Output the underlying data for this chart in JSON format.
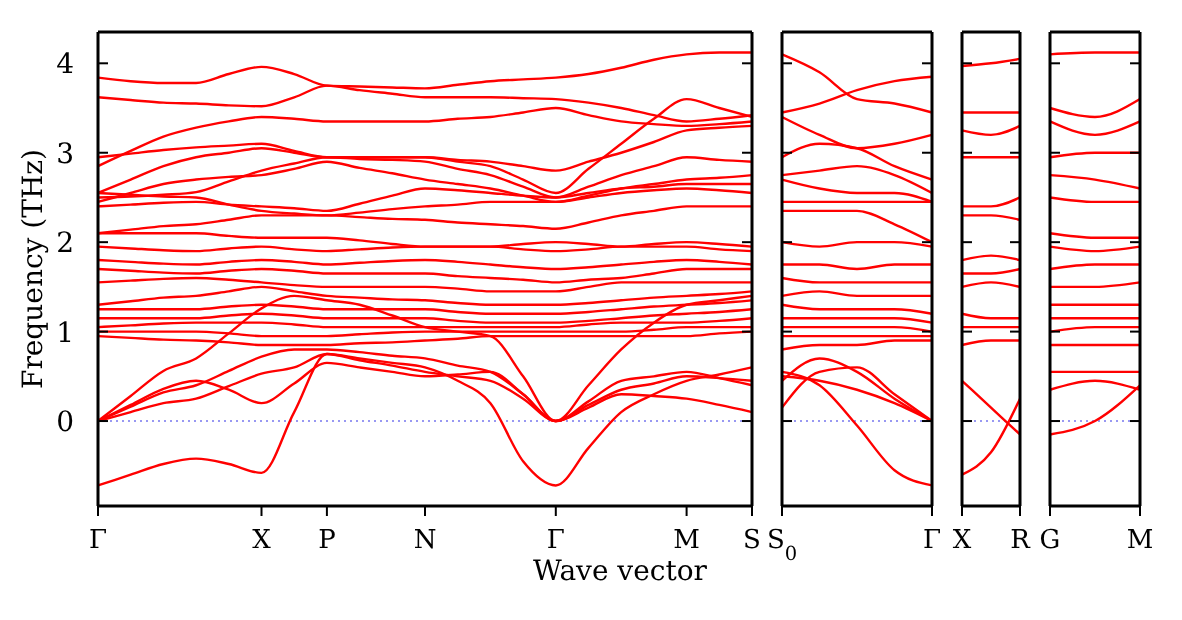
{
  "chart_data": [
    {
      "type": "line",
      "ylabel": "Frequency (THz)",
      "xlabel": "Wave vector",
      "color": "#ff0000",
      "categories": [
        "Γ",
        null,
        null,
        null,
        null,
        "X",
        null,
        "P",
        null,
        null,
        "N",
        null,
        null,
        null,
        "Γ",
        null,
        null,
        null,
        "M",
        null,
        "S"
      ],
      "ylim": [
        -0.95,
        4.35
      ],
      "yticks": [
        0,
        1,
        2,
        3,
        4
      ],
      "ref_lines": [
        {
          "axis": "y",
          "value": 0,
          "color": "#7777ee",
          "line_style": "dotted"
        }
      ],
      "series": [
        {
          "values": [
            3.84,
            3.8,
            3.78,
            3.78,
            3.88,
            3.96,
            3.88,
            3.75,
            3.74,
            3.73,
            3.72,
            3.76,
            3.8,
            3.82,
            3.84,
            3.88,
            3.95,
            4.04,
            4.1,
            4.12,
            4.12
          ]
        },
        {
          "values": [
            3.62,
            3.59,
            3.56,
            3.55,
            3.53,
            3.52,
            3.62,
            3.75,
            3.7,
            3.66,
            3.62,
            3.62,
            3.62,
            3.61,
            3.6,
            3.56,
            3.5,
            3.42,
            3.35,
            3.38,
            3.42
          ]
        },
        {
          "values": [
            2.85,
            3.02,
            3.18,
            3.28,
            3.35,
            3.4,
            3.38,
            3.35,
            3.35,
            3.35,
            3.35,
            3.38,
            3.4,
            3.45,
            3.5,
            3.42,
            3.35,
            3.32,
            3.3,
            3.32,
            3.35
          ]
        },
        {
          "values": [
            2.95,
            2.99,
            3.03,
            3.06,
            3.08,
            3.1,
            3.02,
            2.95,
            2.95,
            2.95,
            2.95,
            2.92,
            2.9,
            2.85,
            2.8,
            2.9,
            3.0,
            3.12,
            3.25,
            3.28,
            3.3
          ]
        },
        {
          "values": [
            2.55,
            2.7,
            2.85,
            2.95,
            3.0,
            3.05,
            3.0,
            2.95,
            2.95,
            2.95,
            2.95,
            2.9,
            2.85,
            2.7,
            2.55,
            2.82,
            3.1,
            3.38,
            3.6,
            3.5,
            3.4
          ]
        },
        {
          "values": [
            2.5,
            2.51,
            2.53,
            2.56,
            2.68,
            2.8,
            2.88,
            2.95,
            2.93,
            2.92,
            2.9,
            2.82,
            2.75,
            2.62,
            2.5,
            2.62,
            2.75,
            2.85,
            2.95,
            2.92,
            2.9
          ]
        },
        {
          "values": [
            2.45,
            2.55,
            2.65,
            2.7,
            2.73,
            2.75,
            2.82,
            2.9,
            2.83,
            2.77,
            2.7,
            2.65,
            2.6,
            2.52,
            2.45,
            2.52,
            2.6,
            2.65,
            2.7,
            2.72,
            2.75
          ]
        },
        {
          "values": [
            2.4,
            2.42,
            2.44,
            2.45,
            2.42,
            2.4,
            2.38,
            2.35,
            2.43,
            2.52,
            2.6,
            2.58,
            2.55,
            2.52,
            2.5,
            2.55,
            2.6,
            2.62,
            2.65,
            2.65,
            2.65
          ]
        },
        {
          "values": [
            2.55,
            2.53,
            2.51,
            2.5,
            2.42,
            2.35,
            2.32,
            2.3,
            2.33,
            2.37,
            2.4,
            2.42,
            2.45,
            2.45,
            2.45,
            2.5,
            2.55,
            2.58,
            2.6,
            2.58,
            2.55
          ]
        },
        {
          "values": [
            2.1,
            2.14,
            2.18,
            2.2,
            2.25,
            2.3,
            2.3,
            2.3,
            2.28,
            2.26,
            2.25,
            2.22,
            2.2,
            2.18,
            2.15,
            2.22,
            2.3,
            2.35,
            2.4,
            2.4,
            2.4
          ]
        },
        {
          "values": [
            2.1,
            2.1,
            2.1,
            2.1,
            2.07,
            2.05,
            2.05,
            2.05,
            2.02,
            1.98,
            1.95,
            1.95,
            1.95,
            1.98,
            2.0,
            1.98,
            1.95,
            1.98,
            2.0,
            1.98,
            1.95
          ]
        },
        {
          "values": [
            1.95,
            1.93,
            1.91,
            1.9,
            1.93,
            1.95,
            1.92,
            1.9,
            1.92,
            1.94,
            1.95,
            1.95,
            1.95,
            1.92,
            1.9,
            1.92,
            1.95,
            1.95,
            1.95,
            1.92,
            1.9
          ]
        },
        {
          "values": [
            1.8,
            1.78,
            1.76,
            1.75,
            1.78,
            1.8,
            1.78,
            1.75,
            1.77,
            1.79,
            1.8,
            1.78,
            1.75,
            1.72,
            1.7,
            1.72,
            1.75,
            1.78,
            1.8,
            1.78,
            1.75
          ]
        },
        {
          "values": [
            1.7,
            1.68,
            1.66,
            1.65,
            1.68,
            1.7,
            1.68,
            1.65,
            1.65,
            1.65,
            1.65,
            1.62,
            1.6,
            1.58,
            1.55,
            1.58,
            1.6,
            1.65,
            1.7,
            1.7,
            1.7
          ]
        },
        {
          "values": [
            1.55,
            1.57,
            1.59,
            1.6,
            1.58,
            1.55,
            1.52,
            1.5,
            1.5,
            1.5,
            1.5,
            1.48,
            1.45,
            1.45,
            1.45,
            1.5,
            1.55,
            1.55,
            1.55,
            1.55,
            1.55
          ]
        },
        {
          "values": [
            1.3,
            1.34,
            1.38,
            1.4,
            1.45,
            1.5,
            1.45,
            1.4,
            1.38,
            1.36,
            1.35,
            1.32,
            1.3,
            1.3,
            1.3,
            1.32,
            1.35,
            1.38,
            1.4,
            1.42,
            1.45
          ]
        },
        {
          "values": [
            1.25,
            1.25,
            1.25,
            1.25,
            1.28,
            1.3,
            1.28,
            1.25,
            1.25,
            1.25,
            1.25,
            1.22,
            1.2,
            1.2,
            1.2,
            1.22,
            1.25,
            1.28,
            1.3,
            1.32,
            1.35
          ]
        },
        {
          "values": [
            1.15,
            1.15,
            1.15,
            1.15,
            1.18,
            1.2,
            1.18,
            1.15,
            1.15,
            1.15,
            1.15,
            1.12,
            1.1,
            1.1,
            1.1,
            1.12,
            1.15,
            1.18,
            1.2,
            1.22,
            1.25
          ]
        },
        {
          "values": [
            1.05,
            1.07,
            1.09,
            1.1,
            1.1,
            1.1,
            1.08,
            1.05,
            1.05,
            1.05,
            1.05,
            1.05,
            1.05,
            1.05,
            1.05,
            1.08,
            1.1,
            1.1,
            1.1,
            1.12,
            1.15
          ]
        },
        {
          "values": [
            1.0,
            1.0,
            1.0,
            1.0,
            0.98,
            0.95,
            0.95,
            0.95,
            0.97,
            0.99,
            1.0,
            1.0,
            1.0,
            1.0,
            1.0,
            1.0,
            1.0,
            1.02,
            1.05,
            1.05,
            1.05
          ]
        },
        {
          "values": [
            0.95,
            0.93,
            0.91,
            0.9,
            0.88,
            0.85,
            0.85,
            0.85,
            0.87,
            0.88,
            0.9,
            0.92,
            0.95,
            0.95,
            0.95,
            0.95,
            0.95,
            0.95,
            0.95,
            0.98,
            1.0
          ]
        },
        {
          "values": [
            0,
            0.28,
            0.56,
            0.7,
            0.98,
            1.26,
            1.4,
            1.35,
            1.3,
            1.18,
            1.05,
            1.0,
            0.95,
            0.5,
            0,
            0.4,
            0.8,
            1.1,
            1.3,
            1.35,
            1.4
          ]
        },
        {
          "values": [
            0,
            0.16,
            0.32,
            0.4,
            0.56,
            0.72,
            0.8,
            0.8,
            0.77,
            0.73,
            0.7,
            0.62,
            0.55,
            0.3,
            0,
            0.22,
            0.45,
            0.5,
            0.55,
            0.48,
            0.4
          ]
        },
        {
          "values": [
            0,
            0.1,
            0.2,
            0.25,
            0.39,
            0.53,
            0.6,
            0.75,
            0.68,
            0.62,
            0.55,
            0.5,
            0.45,
            0.25,
            0,
            0.18,
            0.35,
            0.42,
            0.5,
            0.48,
            0.45
          ]
        },
        {
          "values": [
            0,
            0.18,
            0.36,
            0.45,
            0.35,
            0.2,
            0.42,
            0.65,
            0.6,
            0.55,
            0.5,
            0.52,
            0.55,
            0.3,
            0,
            0.15,
            0.3,
            0.28,
            0.25,
            0.18,
            0.1
          ]
        },
        {
          "values": [
            -0.72,
            -0.6,
            -0.48,
            -0.42,
            -0.48,
            -0.58,
            0.1,
            0.75,
            0.7,
            0.65,
            0.6,
            0.45,
            0.2,
            -0.45,
            -0.72,
            -0.3,
            0.1,
            0.3,
            0.45,
            0.52,
            0.6
          ]
        }
      ]
    },
    {
      "type": "line",
      "color": "#ff0000",
      "categories": [
        "S$_{0}$",
        null,
        null,
        null,
        "Γ"
      ],
      "ylim": [
        -0.95,
        4.35
      ],
      "yticks": [
        0,
        1,
        2,
        3,
        4
      ],
      "tick_labels": "x",
      "ref_lines": [
        {
          "axis": "y",
          "value": 0,
          "color": "#7777ee",
          "line_style": "dotted"
        }
      ],
      "series": [
        {
          "values": [
            4.1,
            3.9,
            3.6,
            3.55,
            3.45
          ]
        },
        {
          "values": [
            3.45,
            3.55,
            3.7,
            3.8,
            3.85
          ]
        },
        {
          "values": [
            3.4,
            3.2,
            3.05,
            3.1,
            3.2
          ]
        },
        {
          "values": [
            2.95,
            3.1,
            3.05,
            2.85,
            2.7
          ]
        },
        {
          "values": [
            2.75,
            2.8,
            2.85,
            2.75,
            2.55
          ]
        },
        {
          "values": [
            2.7,
            2.6,
            2.55,
            2.55,
            2.45
          ]
        },
        {
          "values": [
            2.45,
            2.45,
            2.45,
            2.45,
            2.45
          ]
        },
        {
          "values": [
            2.35,
            2.35,
            2.35,
            2.2,
            2.0
          ]
        },
        {
          "values": [
            2.0,
            1.95,
            2.0,
            2.0,
            1.95
          ]
        },
        {
          "values": [
            1.75,
            1.75,
            1.7,
            1.75,
            1.75
          ]
        },
        {
          "values": [
            1.6,
            1.55,
            1.55,
            1.55,
            1.55
          ]
        },
        {
          "values": [
            1.4,
            1.45,
            1.4,
            1.4,
            1.4
          ]
        },
        {
          "values": [
            1.3,
            1.25,
            1.25,
            1.25,
            1.2
          ]
        },
        {
          "values": [
            1.15,
            1.15,
            1.15,
            1.15,
            1.1
          ]
        },
        {
          "values": [
            1.05,
            1.05,
            1.05,
            1.05,
            1.0
          ]
        },
        {
          "values": [
            0.95,
            0.95,
            0.95,
            0.95,
            0.95
          ]
        },
        {
          "values": [
            0.8,
            0.85,
            0.85,
            0.9,
            0.9
          ]
        },
        {
          "values": [
            0.45,
            0.7,
            0.55,
            0.25,
            0
          ]
        },
        {
          "values": [
            0.5,
            0.45,
            0.35,
            0.2,
            0
          ]
        },
        {
          "values": [
            0.15,
            0.55,
            0.6,
            0.3,
            0
          ]
        },
        {
          "values": [
            0.55,
            0.4,
            -0.05,
            -0.55,
            -0.72
          ]
        }
      ]
    },
    {
      "type": "line",
      "color": "#ff0000",
      "categories": [
        "X",
        null,
        "R"
      ],
      "ylim": [
        -0.95,
        4.35
      ],
      "yticks": [
        0,
        1,
        2,
        3,
        4
      ],
      "tick_labels": "x",
      "ref_lines": [
        {
          "axis": "y",
          "value": 0,
          "color": "#7777ee",
          "line_style": "dotted"
        }
      ],
      "series": [
        {
          "values": [
            3.97,
            4.0,
            4.05
          ]
        },
        {
          "values": [
            3.45,
            3.45,
            3.45
          ]
        },
        {
          "values": [
            3.25,
            3.2,
            3.3
          ]
        },
        {
          "values": [
            2.95,
            2.95,
            2.95
          ]
        },
        {
          "values": [
            2.4,
            2.4,
            2.5
          ]
        },
        {
          "values": [
            2.3,
            2.3,
            2.25
          ]
        },
        {
          "values": [
            1.8,
            1.85,
            1.8
          ]
        },
        {
          "values": [
            1.65,
            1.65,
            1.7
          ]
        },
        {
          "values": [
            1.5,
            1.55,
            1.5
          ]
        },
        {
          "values": [
            1.2,
            1.15,
            1.15
          ]
        },
        {
          "values": [
            1.05,
            1.05,
            1.05
          ]
        },
        {
          "values": [
            0.85,
            0.9,
            0.9
          ]
        },
        {
          "values": [
            0.45,
            0.15,
            -0.15
          ]
        },
        {
          "values": [
            -0.6,
            -0.35,
            0.25
          ]
        }
      ]
    },
    {
      "type": "line",
      "color": "#ff0000",
      "categories": [
        "G",
        null,
        "M"
      ],
      "ylim": [
        -0.95,
        4.35
      ],
      "yticks": [
        0,
        1,
        2,
        3,
        4
      ],
      "tick_labels": "x",
      "ref_lines": [
        {
          "axis": "y",
          "value": 0,
          "color": "#7777ee",
          "line_style": "dotted"
        }
      ],
      "series": [
        {
          "values": [
            4.1,
            4.12,
            4.12
          ]
        },
        {
          "values": [
            3.5,
            3.4,
            3.6
          ]
        },
        {
          "values": [
            3.35,
            3.2,
            3.35
          ]
        },
        {
          "values": [
            2.95,
            3.0,
            3.0
          ]
        },
        {
          "values": [
            2.75,
            2.7,
            2.6
          ]
        },
        {
          "values": [
            2.5,
            2.45,
            2.45
          ]
        },
        {
          "values": [
            2.1,
            2.05,
            2.05
          ]
        },
        {
          "values": [
            1.95,
            1.9,
            1.95
          ]
        },
        {
          "values": [
            1.7,
            1.75,
            1.75
          ]
        },
        {
          "values": [
            1.5,
            1.5,
            1.55
          ]
        },
        {
          "values": [
            1.3,
            1.3,
            1.3
          ]
        },
        {
          "values": [
            1.15,
            1.15,
            1.15
          ]
        },
        {
          "values": [
            1.0,
            1.05,
            1.05
          ]
        },
        {
          "values": [
            0.85,
            0.85,
            0.85
          ]
        },
        {
          "values": [
            0.55,
            0.55,
            0.55
          ]
        },
        {
          "values": [
            0.35,
            0.45,
            0.35
          ]
        },
        {
          "values": [
            -0.15,
            0.0,
            0.4
          ]
        }
      ]
    }
  ]
}
